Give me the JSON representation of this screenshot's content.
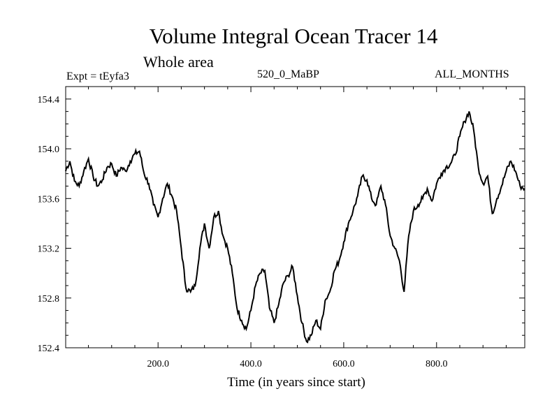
{
  "chart_data": {
    "type": "line",
    "title": "Volume Integral Ocean Tracer 14",
    "subtitle": "Whole area",
    "expt_label": "Expt = tEyfa3",
    "center_label": "520_0_MaBP",
    "right_label": "ALL_MONTHS",
    "xlabel": "Time (in years since start)",
    "ylabel": "",
    "xlim": [
      1,
      990
    ],
    "ylim": [
      152.4,
      154.5
    ],
    "xticks": [
      200,
      400,
      600,
      800
    ],
    "xtick_labels": [
      "200.0",
      "400.0",
      "600.0",
      "800.0"
    ],
    "yticks": [
      152.4,
      152.8,
      153.2,
      153.6,
      154.0,
      154.4
    ],
    "ytick_labels": [
      "152.4",
      "152.8",
      "153.2",
      "153.6",
      "154.0",
      "154.4"
    ],
    "series": [
      {
        "name": "Tracer 14",
        "x": [
          0,
          10,
          20,
          30,
          40,
          50,
          60,
          70,
          80,
          90,
          100,
          110,
          120,
          130,
          140,
          150,
          160,
          170,
          180,
          190,
          200,
          210,
          220,
          230,
          240,
          250,
          260,
          270,
          280,
          290,
          300,
          310,
          320,
          330,
          340,
          350,
          360,
          370,
          380,
          390,
          400,
          410,
          420,
          430,
          440,
          450,
          460,
          470,
          480,
          490,
          500,
          510,
          520,
          530,
          540,
          550,
          560,
          570,
          580,
          590,
          600,
          610,
          620,
          630,
          640,
          650,
          660,
          670,
          680,
          690,
          700,
          710,
          720,
          730,
          740,
          750,
          760,
          770,
          780,
          790,
          800,
          810,
          820,
          830,
          840,
          850,
          860,
          870,
          880,
          890,
          900,
          910,
          920,
          930,
          940,
          950,
          960,
          970,
          980,
          990
        ],
        "y": [
          153.82,
          153.9,
          153.74,
          153.7,
          153.82,
          153.92,
          153.78,
          153.7,
          153.75,
          153.85,
          153.88,
          153.78,
          153.85,
          153.82,
          153.9,
          153.96,
          153.98,
          153.8,
          153.72,
          153.55,
          153.45,
          153.6,
          153.72,
          153.62,
          153.5,
          153.2,
          152.88,
          152.85,
          152.9,
          153.2,
          153.4,
          153.2,
          153.45,
          153.5,
          153.3,
          153.2,
          153.0,
          152.72,
          152.62,
          152.55,
          152.7,
          152.9,
          153.0,
          153.02,
          152.72,
          152.6,
          152.75,
          152.92,
          152.98,
          153.05,
          152.82,
          152.6,
          152.45,
          152.5,
          152.62,
          152.55,
          152.78,
          152.85,
          153.02,
          153.1,
          153.25,
          153.4,
          153.5,
          153.62,
          153.78,
          153.75,
          153.6,
          153.55,
          153.7,
          153.55,
          153.3,
          153.2,
          153.1,
          152.85,
          153.3,
          153.5,
          153.55,
          153.6,
          153.68,
          153.58,
          153.72,
          153.8,
          153.85,
          153.88,
          153.95,
          154.1,
          154.22,
          154.3,
          154.15,
          153.85,
          153.72,
          153.78,
          153.48,
          153.6,
          153.7,
          153.82,
          153.9,
          153.82,
          153.7,
          153.68
        ]
      }
    ]
  }
}
